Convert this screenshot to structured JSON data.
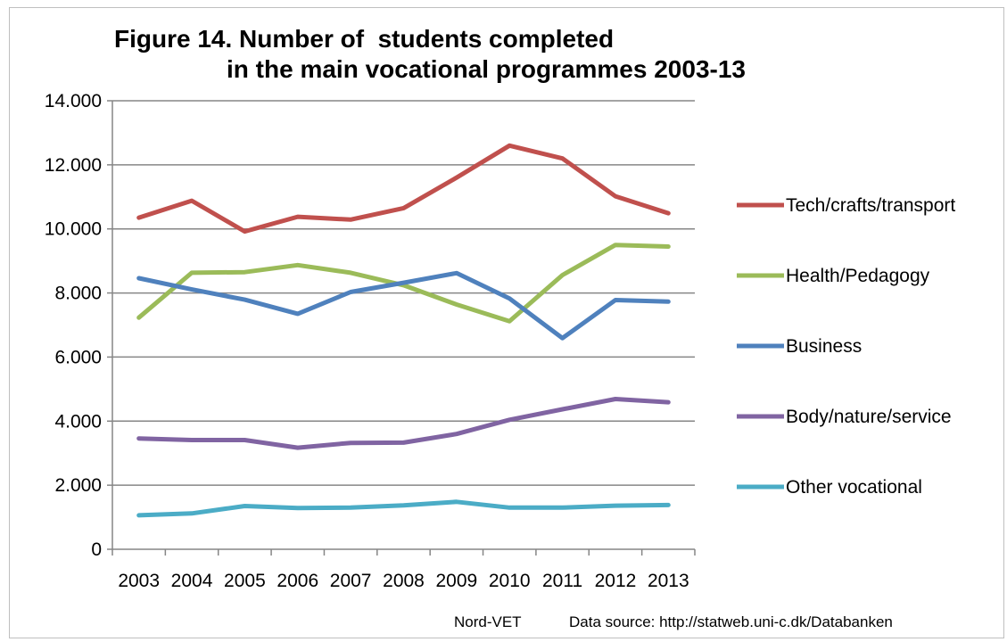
{
  "chart_data": {
    "type": "line",
    "title_line1": "Figure 14. Number of  students completed",
    "title_line2": "in the main vocational programmes 2003-13",
    "xlabel": "",
    "ylabel": "",
    "x": [
      "2003",
      "2004",
      "2005",
      "2006",
      "2007",
      "2008",
      "2009",
      "2010",
      "2011",
      "2012",
      "2013"
    ],
    "ylim": [
      0,
      14000
    ],
    "yticks": [
      0,
      2000,
      4000,
      6000,
      8000,
      10000,
      12000,
      14000
    ],
    "ytick_labels": [
      "0",
      "2.000",
      "4.000",
      "6.000",
      "8.000",
      "10.000",
      "12.000",
      "14.000"
    ],
    "grid": "horizontal",
    "legend_position": "right",
    "series": [
      {
        "name": "Tech/crafts/transport",
        "color": "#c0504d",
        "values": [
          10350,
          10880,
          9920,
          10380,
          10290,
          10650,
          11600,
          12600,
          12200,
          11020,
          10490
        ]
      },
      {
        "name": "Health/Pedagogy",
        "color": "#9bbb59",
        "values": [
          7230,
          8630,
          8650,
          8870,
          8630,
          8240,
          7640,
          7120,
          8560,
          9500,
          9450
        ]
      },
      {
        "name": "Business",
        "color": "#4f81bd",
        "values": [
          8460,
          8110,
          7790,
          7350,
          8030,
          8320,
          8620,
          7830,
          6590,
          7780,
          7730
        ]
      },
      {
        "name": "Body/nature/service",
        "color": "#8064a2",
        "values": [
          3460,
          3410,
          3410,
          3170,
          3320,
          3330,
          3600,
          4040,
          4370,
          4690,
          4590
        ]
      },
      {
        "name": "Other vocational",
        "color": "#4bacc6",
        "values": [
          1060,
          1120,
          1350,
          1290,
          1300,
          1370,
          1480,
          1300,
          1300,
          1360,
          1380
        ]
      }
    ]
  },
  "footer": {
    "credit": "Nord-VET",
    "source": "Data source: http://statweb.uni-c.dk/Databanken"
  }
}
